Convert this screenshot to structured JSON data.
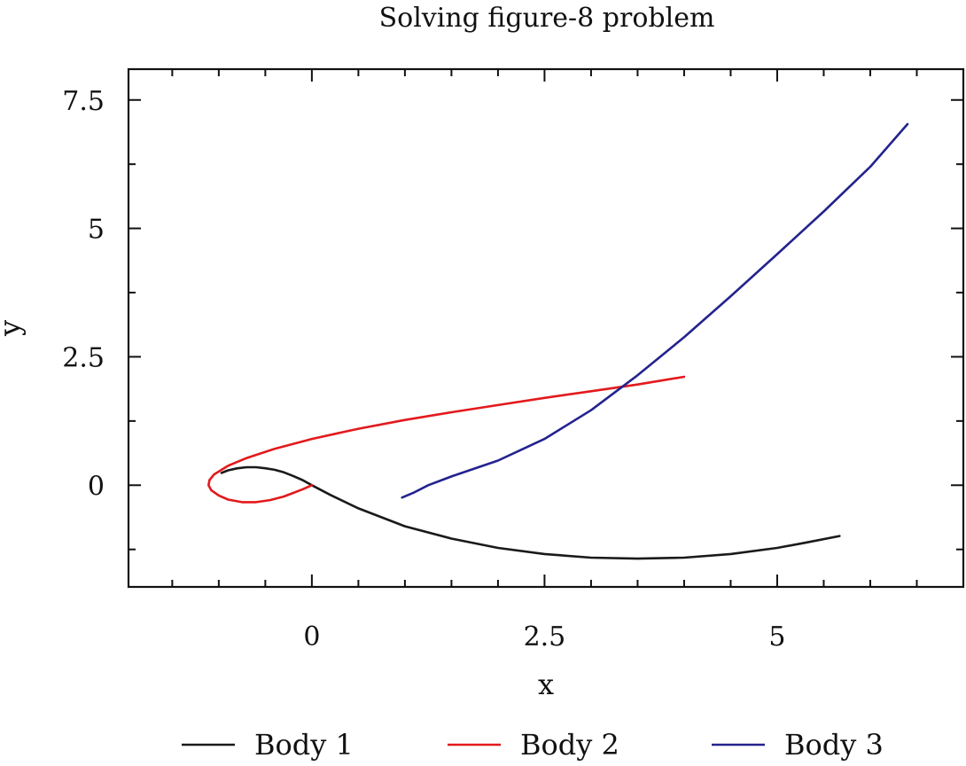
{
  "chart_data": {
    "type": "line",
    "title": "Solving figure-8 problem",
    "xlabel": "x",
    "ylabel": "y",
    "xlim": [
      -1.97,
      7
    ],
    "ylim": [
      -1.98,
      8.1
    ],
    "xticks": [
      0,
      2.5,
      5
    ],
    "xtick_labels": [
      "0",
      "2.5",
      "5"
    ],
    "yticks": [
      0,
      2.5,
      5,
      7.5
    ],
    "ytick_labels": [
      "0",
      "2.5",
      "5",
      "7.5"
    ],
    "grid": false,
    "legend_position": "bottom",
    "series": [
      {
        "name": "Body 1",
        "color": "#1a1a1a",
        "points": [
          [
            -0.97,
            0.24
          ],
          [
            -0.9,
            0.29
          ],
          [
            -0.8,
            0.33
          ],
          [
            -0.7,
            0.35
          ],
          [
            -0.6,
            0.35
          ],
          [
            -0.5,
            0.33
          ],
          [
            -0.4,
            0.3
          ],
          [
            -0.3,
            0.25
          ],
          [
            -0.2,
            0.18
          ],
          [
            -0.1,
            0.1
          ],
          [
            0.0,
            0.0
          ],
          [
            0.2,
            -0.19
          ],
          [
            0.5,
            -0.45
          ],
          [
            1.0,
            -0.8
          ],
          [
            1.5,
            -1.04
          ],
          [
            2.0,
            -1.22
          ],
          [
            2.5,
            -1.34
          ],
          [
            3.0,
            -1.41
          ],
          [
            3.5,
            -1.43
          ],
          [
            4.0,
            -1.41
          ],
          [
            4.5,
            -1.34
          ],
          [
            5.0,
            -1.22
          ],
          [
            5.3,
            -1.12
          ],
          [
            5.67,
            -0.99
          ]
        ]
      },
      {
        "name": "Body 2",
        "color": "#e3191c",
        "points": [
          [
            0.0,
            0.0
          ],
          [
            -0.1,
            -0.08
          ],
          [
            -0.2,
            -0.15
          ],
          [
            -0.3,
            -0.22
          ],
          [
            -0.45,
            -0.29
          ],
          [
            -0.6,
            -0.33
          ],
          [
            -0.75,
            -0.33
          ],
          [
            -0.9,
            -0.28
          ],
          [
            -1.0,
            -0.2
          ],
          [
            -1.08,
            -0.1
          ],
          [
            -1.11,
            0.0
          ],
          [
            -1.1,
            0.1
          ],
          [
            -1.05,
            0.21
          ],
          [
            -0.9,
            0.38
          ],
          [
            -0.7,
            0.53
          ],
          [
            -0.4,
            0.71
          ],
          [
            0.0,
            0.9
          ],
          [
            0.5,
            1.1
          ],
          [
            1.0,
            1.27
          ],
          [
            1.5,
            1.42
          ],
          [
            2.0,
            1.56
          ],
          [
            2.5,
            1.7
          ],
          [
            3.0,
            1.83
          ],
          [
            3.5,
            1.96
          ],
          [
            4.0,
            2.11
          ]
        ]
      },
      {
        "name": "Body 3",
        "color": "#23238e",
        "points": [
          [
            0.97,
            -0.24
          ],
          [
            1.1,
            -0.14
          ],
          [
            1.25,
            0.0
          ],
          [
            1.5,
            0.17
          ],
          [
            2.0,
            0.48
          ],
          [
            2.5,
            0.9
          ],
          [
            3.0,
            1.46
          ],
          [
            3.5,
            2.14
          ],
          [
            4.0,
            2.88
          ],
          [
            4.5,
            3.68
          ],
          [
            5.0,
            4.5
          ],
          [
            5.5,
            5.33
          ],
          [
            6.0,
            6.2
          ],
          [
            6.4,
            7.03
          ]
        ]
      }
    ]
  }
}
